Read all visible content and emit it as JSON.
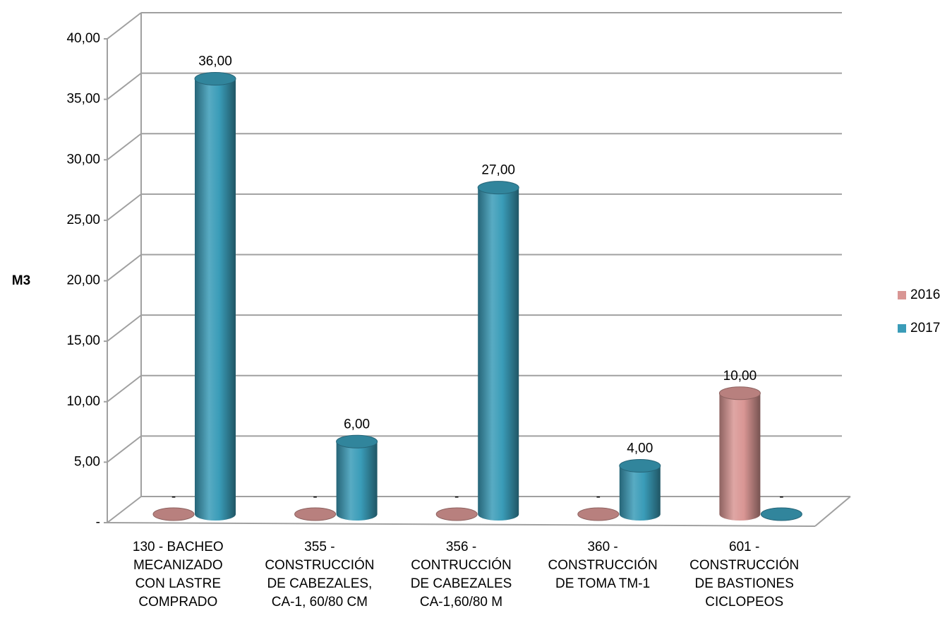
{
  "chart_data": {
    "type": "bar3d-cylinder",
    "y_label": "M3",
    "categories": [
      [
        "130 - BACHEO",
        "MECANIZADO",
        "CON LASTRE",
        "COMPRADO"
      ],
      [
        "355 -",
        "CONSTRUCCIÓN",
        "DE CABEZALES,",
        "CA-1, 60/80 CM"
      ],
      [
        "356 -",
        "CONTRUCCIÓN",
        "DE CABEZALES",
        "CA-1,60/80 M"
      ],
      [
        "360 -",
        "CONSTRUCCIÓN",
        "DE TOMA TM-1"
      ],
      [
        "601 -",
        "CONSTRUCCIÓN",
        "DE BASTIONES",
        "CICLOPEOS"
      ]
    ],
    "series": [
      {
        "name": "2016",
        "color": "#d99694",
        "values": [
          0,
          0,
          0,
          0,
          10
        ],
        "value_labels": [
          "-",
          "-",
          "-",
          "-",
          "10,00"
        ]
      },
      {
        "name": "2017",
        "color": "#3a9cb8",
        "values": [
          36,
          6,
          27,
          4,
          0
        ],
        "value_labels": [
          "36,00",
          "6,00",
          "27,00",
          "4,00",
          "-"
        ]
      }
    ],
    "ylim": [
      0,
      40
    ],
    "yticks": [
      {
        "value": 0,
        "label": "-"
      },
      {
        "value": 5,
        "label": "5,00"
      },
      {
        "value": 10,
        "label": "10,00"
      },
      {
        "value": 15,
        "label": "15,00"
      },
      {
        "value": 20,
        "label": "20,00"
      },
      {
        "value": 25,
        "label": "25,00"
      },
      {
        "value": 30,
        "label": "30,00"
      },
      {
        "value": 35,
        "label": "35,00"
      },
      {
        "value": 40,
        "label": "40,00"
      }
    ],
    "grid": true,
    "legend": "right"
  }
}
